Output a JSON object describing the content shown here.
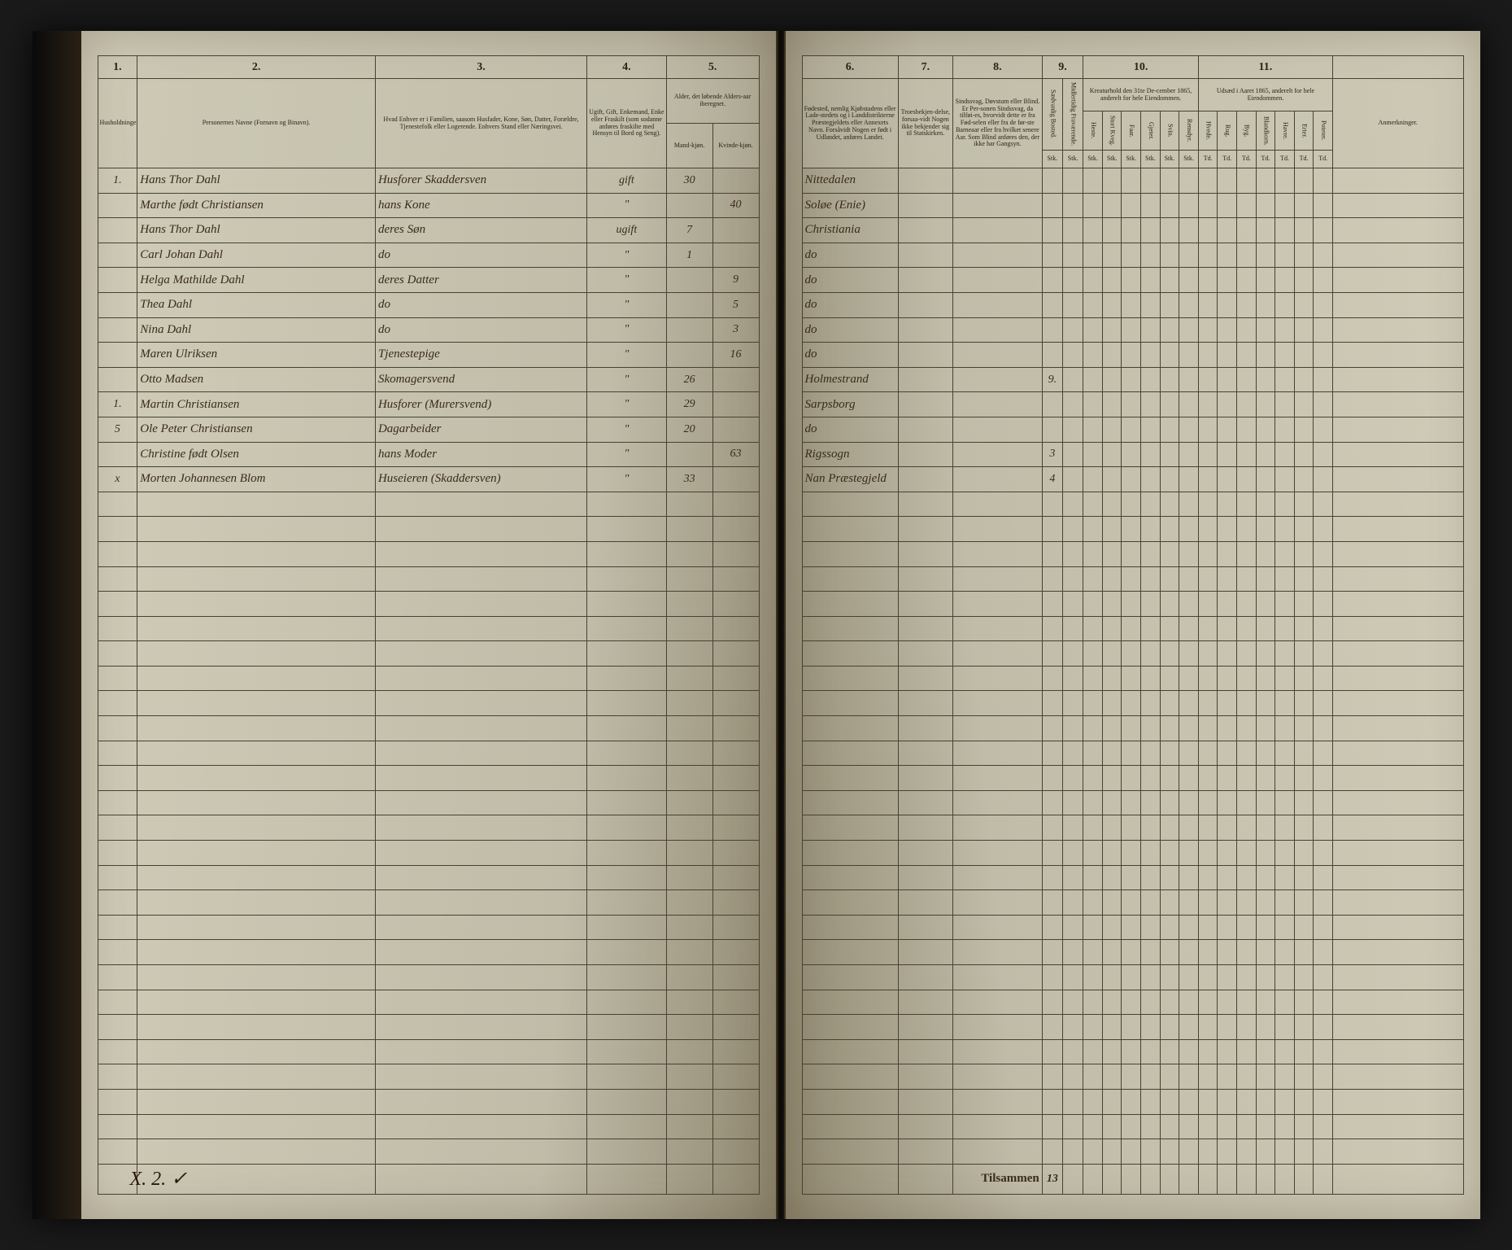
{
  "columns_left": {
    "c1": "1.",
    "c2": "2.",
    "c3": "3.",
    "c4": "4.",
    "c5": "5."
  },
  "columns_right": {
    "c6": "6.",
    "c7": "7.",
    "c8": "8.",
    "c9": "9.",
    "c10": "10.",
    "c11": "11."
  },
  "headers_left": {
    "h1": "Husholdninger.",
    "h2": "Personernes Navne (Fornavn og Binavn).",
    "h3": "Hvad Enhver er i Familien, saasom Husfader, Kone, Søn, Datter, Forældre, Tjenestefolk eller Logerende. Enhvers Stand eller Næringsvei.",
    "h4": "Ugift, Gift, Enkemand, Enke eller Fraskilt (som sodanne anføres fraskilte med Hensyn til Bord og Seng).",
    "h5": "Alder, det løbende Alders-aar iberegnet.",
    "h5a": "Mand-kjøn.",
    "h5b": "Kvinde-kjøn."
  },
  "headers_right": {
    "h6": "Fødested, nemlig Kjøbstadens eller Lade-stedets og i Landdistrikterne Præstegjeldets eller Annexets Navn. Forsåvidt Nogen er født i Udlandet, anføres Landet.",
    "h7": "Troesbekjen-delse, forsaa-vidt Nogen ikke bekjender sig til Statskirken.",
    "h8": "Sindssvag, Døvstum eller Blind. Er Per-sonen Sindssvag, da tilføi-es, hvorvidt dette er fra Fød-selen eller fra de før-ste Barneaar eller fra hvilket senere Aar. Som Blind anføres den, der ikke har Gangsyn.",
    "h9": "",
    "h9a": "Sædvanlig Bosted.",
    "h9b": "Midlertidig Fraværende.",
    "h10": "Kreaturhold den 31te De-cember 1865, anderelt for hele Eiendommen.",
    "h10_subs": [
      "Heste.",
      "Stort Kveg.",
      "Faar.",
      "Gjeter.",
      "Svin.",
      "Rensdyr."
    ],
    "h11": "Udsæd i Aaret 1865, anderelt for hele Eiendommen.",
    "h11_subs": [
      "Hvede.",
      "Rug.",
      "Byg.",
      "Blandkorn.",
      "Havre.",
      "Erter.",
      "Poteter."
    ],
    "h12": "Anmerkninger."
  },
  "sub_units": {
    "stk": "Stk.",
    "td": "Td."
  },
  "rows": [
    {
      "hh": "1.",
      "name": "Hans Thor Dahl",
      "rel": "Husforer Skaddersven",
      "stat": "gift",
      "m": "30",
      "f": "",
      "birth": "Nittedalen",
      "c9": ""
    },
    {
      "hh": "",
      "name": "Marthe født Christiansen",
      "rel": "hans Kone",
      "stat": "\"",
      "m": "",
      "f": "40",
      "birth": "Soløe (Enie)",
      "c9": ""
    },
    {
      "hh": "",
      "name": "Hans Thor Dahl",
      "rel": "deres Søn",
      "stat": "ugift",
      "m": "7",
      "f": "",
      "birth": "Christiania",
      "c9": ""
    },
    {
      "hh": "",
      "name": "Carl Johan Dahl",
      "rel": "do",
      "stat": "\"",
      "m": "1",
      "f": "",
      "birth": "do",
      "c9": ""
    },
    {
      "hh": "",
      "name": "Helga Mathilde Dahl",
      "rel": "deres Datter",
      "stat": "\"",
      "m": "",
      "f": "9",
      "birth": "do",
      "c9": ""
    },
    {
      "hh": "",
      "name": "Thea Dahl",
      "rel": "do",
      "stat": "\"",
      "m": "",
      "f": "5",
      "birth": "do",
      "c9": ""
    },
    {
      "hh": "",
      "name": "Nina Dahl",
      "rel": "do",
      "stat": "\"",
      "m": "",
      "f": "3",
      "birth": "do",
      "c9": ""
    },
    {
      "hh": "",
      "name": "Maren Ulriksen",
      "rel": "Tjenestepige",
      "stat": "\"",
      "m": "",
      "f": "16",
      "birth": "do",
      "c9": ""
    },
    {
      "hh": "",
      "name": "Otto Madsen",
      "rel": "Skomagersvend",
      "stat": "\"",
      "m": "26",
      "f": "",
      "birth": "Holmestrand",
      "c9": "9."
    },
    {
      "hh": "1.",
      "name": "Martin Christiansen",
      "rel": "Husforer (Murersvend)",
      "stat": "\"",
      "m": "29",
      "f": "",
      "birth": "Sarpsborg",
      "c9": ""
    },
    {
      "hh": "5",
      "name": "Ole Peter Christiansen",
      "rel": "Dagarbeider",
      "stat": "\"",
      "m": "20",
      "f": "",
      "birth": "do",
      "c9": ""
    },
    {
      "hh": "",
      "name": "Christine født Olsen",
      "rel": "hans Moder",
      "stat": "\"",
      "m": "",
      "f": "63",
      "birth": "Rigssogn",
      "c9": "3"
    },
    {
      "hh": "x",
      "name": "Morten Johannesen Blom",
      "rel": "Huseieren (Skaddersven)",
      "stat": "\"",
      "m": "33",
      "f": "",
      "birth": "Nan Præstegjeld",
      "c9": "4"
    }
  ],
  "footer": {
    "label": "Tilsammen",
    "total": "13"
  },
  "bottom_mark": "X. 2. ✓"
}
